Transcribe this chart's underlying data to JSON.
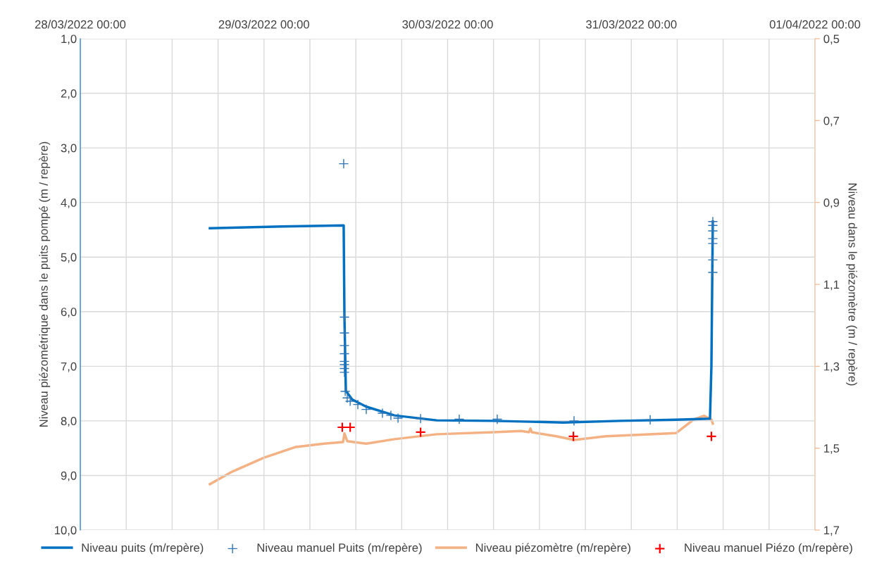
{
  "chart_data": {
    "type": "line",
    "ylabel": "Niveau piézométrique dans le puits pompé (m / repère)",
    "y2label": "Niveau dans le piézomètre (m / repère)",
    "xlim": [
      "2022-03-28T00:00",
      "2022-04-01T00:00"
    ],
    "xticks": [
      {
        "value": "2022-03-28T00:00",
        "label": "28/03/2022 00:00"
      },
      {
        "value": "2022-03-28T06:00",
        "label": null
      },
      {
        "value": "2022-03-28T12:00",
        "label": null
      },
      {
        "value": "2022-03-28T18:00",
        "label": null
      },
      {
        "value": "2022-03-29T00:00",
        "label": "29/03/2022 00:00"
      },
      {
        "value": "2022-03-29T06:00",
        "label": null
      },
      {
        "value": "2022-03-29T12:00",
        "label": null
      },
      {
        "value": "2022-03-29T18:00",
        "label": null
      },
      {
        "value": "2022-03-30T00:00",
        "label": "30/03/2022 00:00"
      },
      {
        "value": "2022-03-30T06:00",
        "label": null
      },
      {
        "value": "2022-03-30T12:00",
        "label": null
      },
      {
        "value": "2022-03-30T18:00",
        "label": null
      },
      {
        "value": "2022-03-31T00:00",
        "label": "31/03/2022 00:00"
      },
      {
        "value": "2022-03-31T06:00",
        "label": null
      },
      {
        "value": "2022-03-31T12:00",
        "label": null
      },
      {
        "value": "2022-03-31T18:00",
        "label": null
      },
      {
        "value": "2022-04-01T00:00",
        "label": "01/04/2022 00:00"
      }
    ],
    "ylim": [
      10,
      1
    ],
    "yticks": [
      {
        "value": 1,
        "label": "1,0"
      },
      {
        "value": 2,
        "label": "2,0"
      },
      {
        "value": 3,
        "label": "3,0"
      },
      {
        "value": 4,
        "label": "4,0"
      },
      {
        "value": 5,
        "label": "5,0"
      },
      {
        "value": 6,
        "label": "6,0"
      },
      {
        "value": 7,
        "label": "7,0"
      },
      {
        "value": 8,
        "label": "8,0"
      },
      {
        "value": 9,
        "label": "9,0"
      },
      {
        "value": 10,
        "label": "10,0"
      }
    ],
    "y2lim": [
      1.7,
      0.5
    ],
    "y2ticks": [
      {
        "value": 0.5,
        "label": "0,5"
      },
      {
        "value": 0.7,
        "label": "0,7"
      },
      {
        "value": 0.9,
        "label": "0,9"
      },
      {
        "value": 1.1,
        "label": "1,1"
      },
      {
        "value": 1.3,
        "label": "1,3"
      },
      {
        "value": 1.5,
        "label": "1,5"
      },
      {
        "value": 1.7,
        "label": "1,7"
      }
    ],
    "grid": true,
    "legend": "bottom",
    "series": [
      {
        "name": "Niveau puits (m/repère)",
        "color": "#0070c0",
        "line_style": "solid",
        "x": [
          "2022-03-28T16:56",
          "2022-03-29T02:19",
          "2022-03-29T10:25",
          "2022-03-29T10:31",
          "2022-03-29T10:42",
          "2022-03-29T11:32",
          "2022-03-29T13:22",
          "2022-03-29T17:03",
          "2022-03-29T22:34",
          "2022-03-30T05:56",
          "2022-03-30T15:08",
          "2022-03-30T22:31",
          "2022-03-31T05:52",
          "2022-03-31T10:17",
          "2022-03-31T10:28",
          "2022-03-31T10:39"
        ],
        "values": [
          4.47,
          4.44,
          4.42,
          6.1,
          7.45,
          7.61,
          7.74,
          7.9,
          7.99,
          8.0,
          8.03,
          8.0,
          7.98,
          7.96,
          7.0,
          4.35
        ]
      },
      {
        "name": "Niveau manuel Puits (m/repère)",
        "type": "scatter",
        "marker": "cross",
        "color": "#2e75b6",
        "x": [
          "2022-03-29T10:25",
          "2022-03-29T10:31",
          "2022-03-29T10:31",
          "2022-03-29T10:31",
          "2022-03-29T10:31",
          "2022-03-29T10:31",
          "2022-03-29T10:31",
          "2022-03-29T10:31",
          "2022-03-29T10:31",
          "2022-03-29T10:37",
          "2022-03-29T10:53",
          "2022-03-29T11:16",
          "2022-03-29T12:16",
          "2022-03-29T13:22",
          "2022-03-29T15:29",
          "2022-03-29T16:35",
          "2022-03-29T17:31",
          "2022-03-29T20:28",
          "2022-03-30T01:31",
          "2022-03-30T06:29",
          "2022-03-30T16:31",
          "2022-03-31T02:28",
          "2022-03-31T10:39",
          "2022-03-31T10:39",
          "2022-03-31T10:39",
          "2022-03-31T10:39",
          "2022-03-31T10:39",
          "2022-03-31T10:39",
          "2022-03-31T10:39"
        ],
        "values": [
          3.29,
          6.1,
          6.39,
          6.62,
          6.77,
          6.91,
          6.97,
          7.04,
          7.11,
          7.46,
          7.58,
          7.64,
          7.7,
          7.79,
          7.86,
          7.9,
          7.95,
          7.96,
          7.97,
          7.97,
          8.0,
          7.98,
          4.35,
          4.42,
          4.52,
          4.66,
          4.75,
          5.05,
          5.28
        ]
      },
      {
        "name": "Niveau piézomètre (m/repère)",
        "axis": "y2",
        "color": "#f4b183",
        "line_style": "solid",
        "x": [
          "2022-03-28T16:56",
          "2022-03-28T19:53",
          "2022-03-29T00:01",
          "2022-03-29T04:10",
          "2022-03-29T07:50",
          "2022-03-29T10:20",
          "2022-03-29T10:31",
          "2022-03-29T10:53",
          "2022-03-29T13:22",
          "2022-03-29T17:03",
          "2022-03-29T22:34",
          "2022-03-30T05:56",
          "2022-03-30T09:38",
          "2022-03-30T10:38",
          "2022-03-30T10:49",
          "2022-03-30T11:00",
          "2022-03-30T14:13",
          "2022-03-30T16:31",
          "2022-03-30T20:40",
          "2022-03-31T05:52",
          "2022-03-31T08:10",
          "2022-03-31T09:32",
          "2022-03-31T10:28",
          "2022-03-31T10:39"
        ],
        "values": [
          1.588,
          1.557,
          1.523,
          1.497,
          1.489,
          1.485,
          1.464,
          1.483,
          1.489,
          1.478,
          1.466,
          1.461,
          1.458,
          1.461,
          1.452,
          1.461,
          1.471,
          1.48,
          1.471,
          1.463,
          1.43,
          1.421,
          1.43,
          1.44
        ]
      },
      {
        "name": "Niveau manuel Piézo (m/repère)",
        "type": "scatter",
        "marker": "cross",
        "axis": "y2",
        "color": "#ff0000",
        "x": [
          "2022-03-29T10:14",
          "2022-03-29T11:16",
          "2022-03-29T20:28",
          "2022-03-30T16:26",
          "2022-03-31T10:28"
        ],
        "values": [
          1.449,
          1.449,
          1.461,
          1.471,
          1.471
        ]
      }
    ]
  }
}
